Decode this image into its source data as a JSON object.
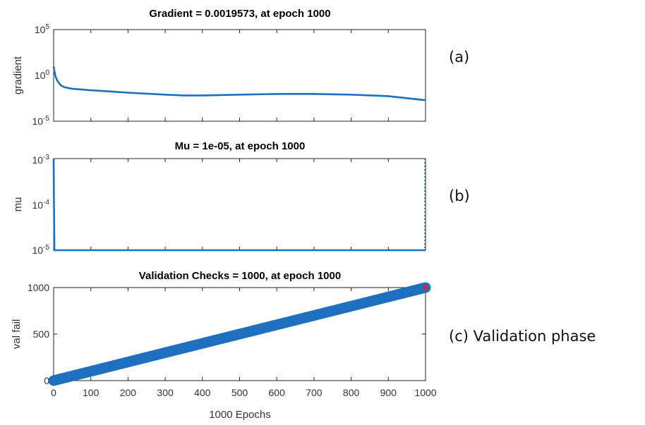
{
  "chart_data": [
    {
      "type": "line",
      "title": "Gradient = 0.0019573, at epoch 1000",
      "xlabel": "",
      "ylabel": "gradient",
      "yscale": "log",
      "xlim": [
        0,
        1000
      ],
      "ylim": [
        1e-05,
        100000
      ],
      "y_ticks": [
        {
          "base": "10",
          "exp": "5"
        },
        {
          "base": "10",
          "exp": "0"
        },
        {
          "base": "10",
          "exp": "-5"
        }
      ],
      "color": "#1f6fbf",
      "series": [
        {
          "x": [
            0,
            2,
            5,
            10,
            20,
            30,
            50,
            80,
            100,
            150,
            200,
            300,
            350,
            400,
            500,
            600,
            700,
            800,
            900,
            1000
          ],
          "y": [
            10,
            3,
            0.8,
            0.25,
            0.08,
            0.05,
            0.035,
            0.028,
            0.024,
            0.018,
            0.013,
            0.008,
            0.0065,
            0.0065,
            0.008,
            0.0095,
            0.0095,
            0.008,
            0.0055,
            0.0019573
          ]
        }
      ],
      "side_label": "(a)"
    },
    {
      "type": "line",
      "title": "Mu = 1e-05, at epoch 1000",
      "xlabel": "",
      "ylabel": "mu",
      "yscale": "log",
      "xlim": [
        0,
        1000
      ],
      "ylim": [
        1e-05,
        0.001
      ],
      "y_ticks": [
        {
          "base": "10",
          "exp": "-3"
        },
        {
          "base": "10",
          "exp": "-4"
        },
        {
          "base": "10",
          "exp": "-5"
        }
      ],
      "color": "#1f6fbf",
      "series": [
        {
          "x": [
            0,
            1,
            2,
            1000
          ],
          "y": [
            0.001,
            0.0001,
            1e-05,
            1e-05
          ]
        }
      ],
      "side_label": "(b)"
    },
    {
      "type": "scatter",
      "title": "Validation Checks = 1000, at epoch 1000",
      "xlabel": "1000 Epochs",
      "ylabel": "val fail",
      "xlim": [
        0,
        1000
      ],
      "ylim": [
        0,
        1000
      ],
      "x_ticks": [
        0,
        100,
        200,
        300,
        400,
        500,
        600,
        700,
        800,
        900,
        1000
      ],
      "y_ticks": [
        0,
        500,
        1000
      ],
      "color": "#1f6fbf",
      "highlight_color": "#e02020",
      "series": [
        {
          "x_start": 0,
          "x_end": 1000,
          "y_start": 0,
          "y_end": 1000,
          "description": "val fail increases by 1 each epoch"
        }
      ],
      "highlight_point": {
        "x": 1000,
        "y": 1000
      },
      "side_label": "(c) Validation phase"
    }
  ]
}
